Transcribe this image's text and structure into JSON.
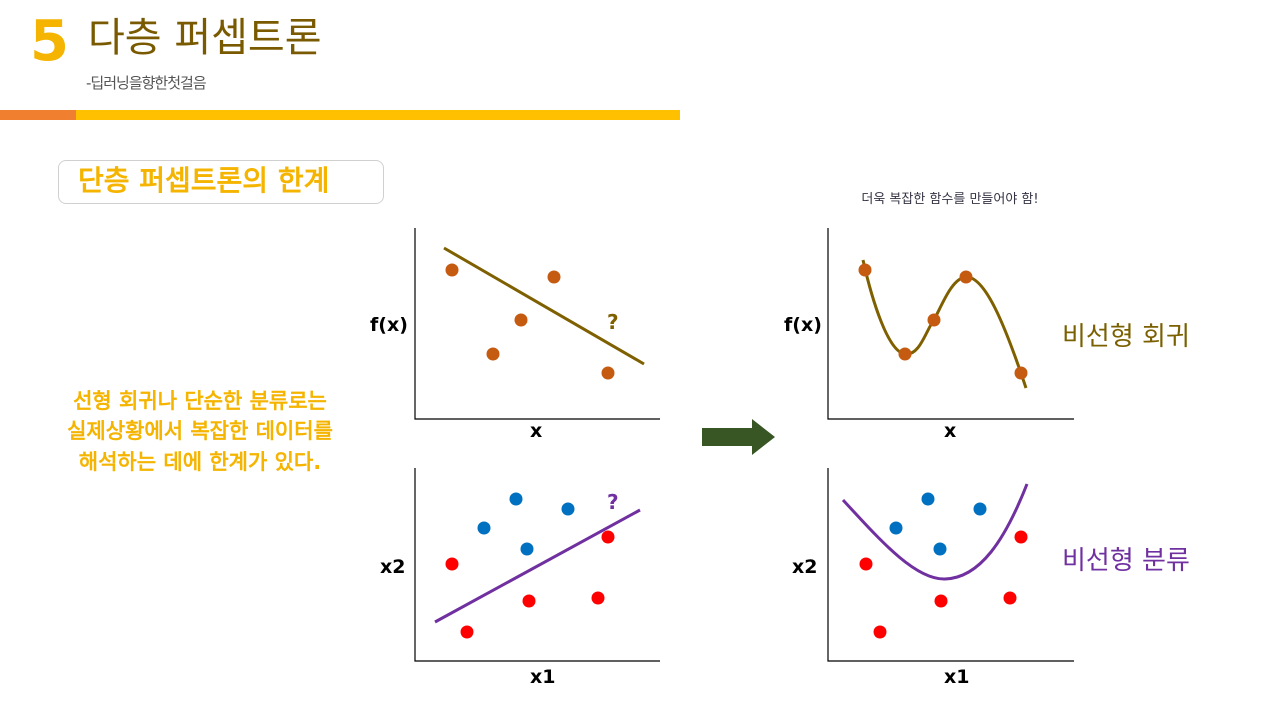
{
  "header": {
    "number": "5",
    "title": "다층 퍼셉트론",
    "subtitle": "-딥러닝을향한첫걸음"
  },
  "section": {
    "title": "단층 퍼셉트론의 한계"
  },
  "description": {
    "lines": [
      "선형 회귀나 단순한 분류로는",
      "실제상황에서 복잡한 데이터를",
      "해석하는 데에 한계가 있다."
    ]
  },
  "right_note": "더욱 복잡한 함수를 만들어야 함!",
  "labels": {
    "fx": "f(x)",
    "x": "x",
    "x1": "x1",
    "x2": "x2",
    "question": "?",
    "nonlinear_regression": "비선형 회귀",
    "nonlinear_classification": "비선형 분류"
  },
  "colors": {
    "accent_yellow": "#f5b400",
    "title_brown": "#7a5a00",
    "orange_point": "#c55a11",
    "olive_line": "#7f6000",
    "blue_point": "#0070c0",
    "red_point": "#ff0000",
    "purple_line": "#7030a0",
    "arrow_green": "#375623"
  }
}
